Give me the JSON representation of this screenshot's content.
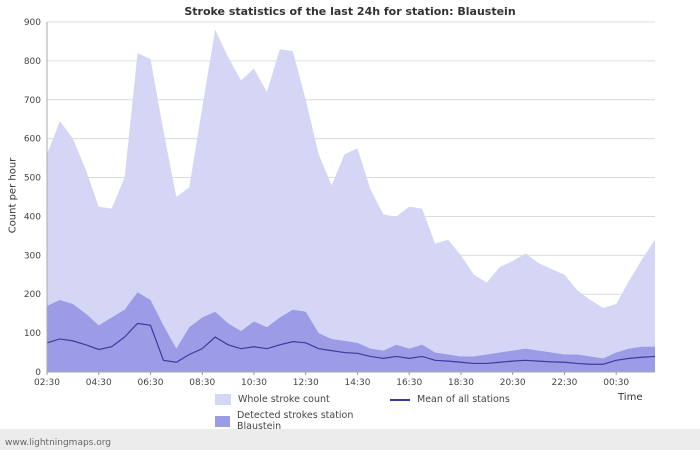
{
  "footer": {
    "text": "www.lightningmaps.org"
  },
  "chart_data": {
    "type": "area",
    "title": "Stroke statistics of the last 24h for station: Blaustein",
    "xlabel": "Time",
    "ylabel": "Count per hour",
    "ylim": [
      0,
      900
    ],
    "y_ticks": [
      0,
      100,
      200,
      300,
      400,
      500,
      600,
      700,
      800,
      900
    ],
    "x_tick_labels": [
      "02:30",
      "04:30",
      "06:30",
      "08:30",
      "10:30",
      "12:30",
      "14:30",
      "16:30",
      "18:30",
      "20:30",
      "22:30",
      "00:30"
    ],
    "points_per_label": 4,
    "grid": "horizontal",
    "legend_position": "bottom",
    "series": [
      {
        "name": "Whole stroke count",
        "type": "area",
        "color": "#d5d5f6",
        "values": [
          560,
          645,
          600,
          520,
          425,
          420,
          500,
          820,
          805,
          620,
          450,
          475,
          680,
          880,
          810,
          750,
          780,
          720,
          830,
          825,
          700,
          560,
          480,
          560,
          575,
          470,
          405,
          400,
          425,
          420,
          330,
          340,
          300,
          250,
          230,
          270,
          285,
          305,
          280,
          265,
          250,
          210,
          185,
          165,
          175,
          235,
          290,
          340
        ]
      },
      {
        "name": "Detected strokes station Blaustein",
        "type": "area",
        "color": "#9c9ce6",
        "values": [
          170,
          185,
          175,
          150,
          120,
          140,
          160,
          205,
          185,
          120,
          60,
          115,
          140,
          155,
          125,
          105,
          130,
          115,
          140,
          160,
          155,
          100,
          85,
          80,
          75,
          60,
          55,
          70,
          60,
          70,
          50,
          45,
          40,
          40,
          45,
          50,
          55,
          60,
          55,
          50,
          45,
          45,
          40,
          35,
          50,
          60,
          65,
          65
        ]
      },
      {
        "name": "Mean of all stations",
        "type": "line",
        "color": "#3b3b9e",
        "values": [
          75,
          85,
          80,
          70,
          58,
          65,
          90,
          125,
          120,
          30,
          25,
          45,
          60,
          90,
          70,
          60,
          65,
          60,
          70,
          78,
          75,
          60,
          55,
          50,
          48,
          40,
          35,
          40,
          35,
          40,
          30,
          28,
          25,
          22,
          22,
          25,
          28,
          30,
          28,
          26,
          25,
          22,
          20,
          20,
          30,
          35,
          38,
          40
        ]
      }
    ]
  }
}
